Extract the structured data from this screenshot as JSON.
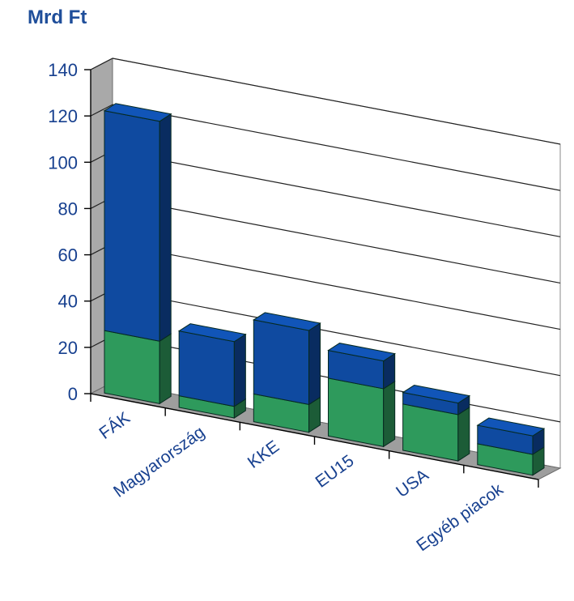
{
  "chart_data": {
    "type": "bar",
    "stacked": true,
    "three_d": true,
    "unit_label": "Mrd Ft",
    "categories": [
      "FÁK",
      "Magyarország",
      "KKE",
      "EU15",
      "USA",
      "Egyéb piacok"
    ],
    "series": [
      {
        "values": [
          27,
          5,
          12,
          25,
          20,
          9
        ],
        "color": "#2e9a5c"
      },
      {
        "values": [
          95,
          28,
          32,
          12,
          5,
          8
        ],
        "color": "#0f4aa0"
      }
    ],
    "yticks": [
      0,
      20,
      40,
      60,
      80,
      100,
      120,
      140
    ],
    "ylim": [
      0,
      140
    ],
    "grid": true,
    "legend": "none"
  }
}
